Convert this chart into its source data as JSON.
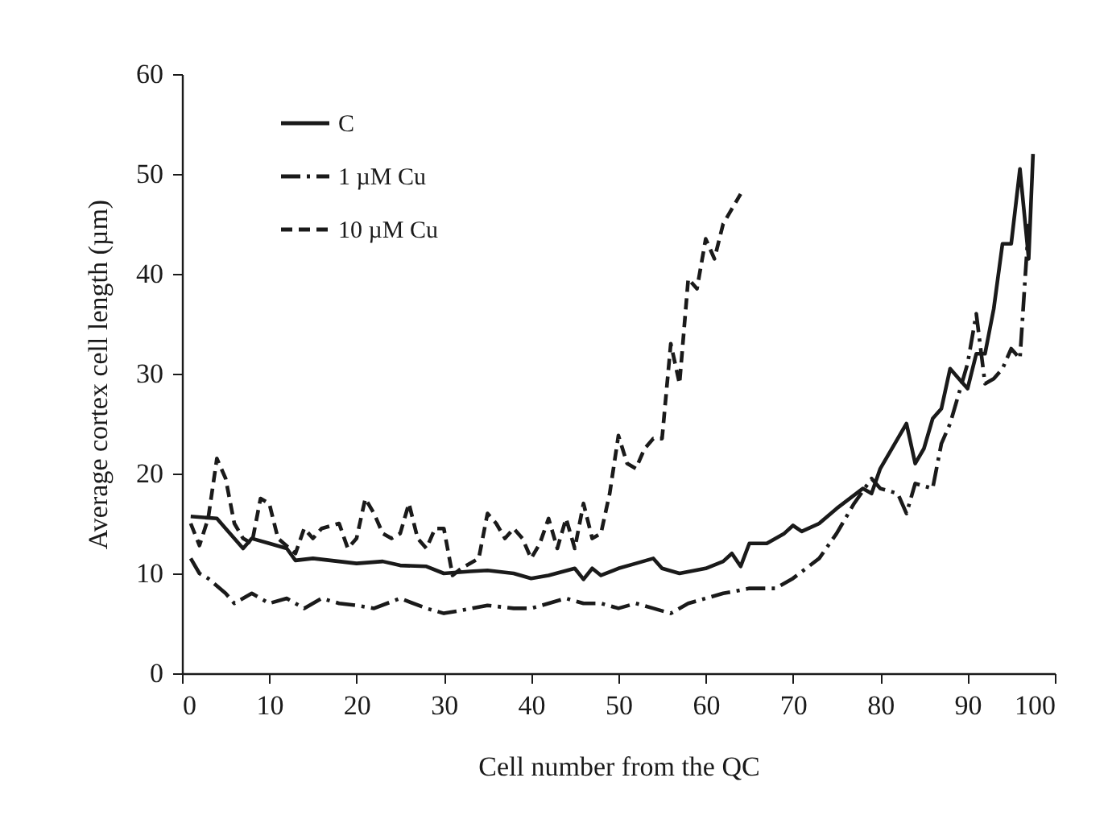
{
  "chart_data": {
    "type": "line",
    "xlabel": "Cell number from the QC",
    "ylabel": "Average cortex cell length (µm)",
    "xlim": [
      0,
      100
    ],
    "xticks": [
      0,
      10,
      20,
      30,
      40,
      50,
      60,
      70,
      80,
      90,
      100
    ],
    "ylim": [
      0,
      60
    ],
    "yticks": [
      0,
      10,
      20,
      30,
      40,
      50,
      60
    ],
    "grid": false,
    "legend": "top left",
    "marker": "none",
    "series": [
      {
        "name": "C",
        "color": "#1a1a1a",
        "line_style": "solid",
        "x": [
          1,
          4,
          5,
          7,
          8,
          10,
          12,
          13,
          15,
          18,
          20,
          23,
          25,
          28,
          30,
          33,
          35,
          38,
          40,
          42,
          45,
          46,
          47,
          48,
          50,
          52,
          54,
          55,
          57,
          60,
          62,
          63,
          64,
          65,
          67,
          69,
          70,
          71,
          73,
          75,
          78,
          79,
          80,
          82,
          83,
          84,
          85,
          86,
          87,
          88,
          89,
          90,
          91,
          92,
          93,
          94,
          95,
          96,
          97,
          97.5
        ],
        "values": [
          15.7,
          15.5,
          14.5,
          12.5,
          13.5,
          13,
          12.5,
          11.3,
          11.5,
          11.2,
          11,
          11.2,
          10.8,
          10.7,
          10,
          10.2,
          10.3,
          10,
          9.5,
          9.8,
          10.5,
          9.4,
          10.5,
          9.8,
          10.5,
          11,
          11.5,
          10.5,
          10,
          10.5,
          11.2,
          12,
          10.7,
          13,
          13,
          14,
          14.8,
          14.2,
          15,
          16.5,
          18.5,
          18,
          20.5,
          23.5,
          25,
          21,
          22.5,
          25.5,
          26.5,
          30.5,
          29.5,
          28.5,
          32,
          32,
          36.5,
          43,
          43,
          50.5,
          41.5,
          52
        ]
      },
      {
        "name": "1 µM Cu",
        "color": "#1a1a1a",
        "line_style": "dashdot",
        "x": [
          1,
          2,
          3,
          5,
          6,
          8,
          10,
          12,
          14,
          16,
          18,
          20,
          22,
          25,
          28,
          30,
          32,
          35,
          38,
          40,
          42,
          44,
          46,
          48,
          50,
          52,
          54,
          56,
          58,
          60,
          62,
          65,
          68,
          70,
          73,
          75,
          77,
          79,
          80,
          82,
          83,
          84,
          86,
          87,
          88,
          90,
          91,
          92,
          93,
          94,
          95,
          96,
          97
        ],
        "values": [
          11.5,
          10,
          9.5,
          8,
          7,
          8,
          7,
          7.5,
          6.5,
          7.5,
          7,
          6.8,
          6.5,
          7.5,
          6.5,
          6,
          6.3,
          6.8,
          6.5,
          6.5,
          7,
          7.5,
          7,
          7,
          6.5,
          7,
          6.5,
          6,
          7,
          7.5,
          8,
          8.5,
          8.5,
          9.5,
          11.5,
          14,
          17,
          19.5,
          18.5,
          18,
          16,
          19,
          18.5,
          23,
          25,
          31,
          36,
          29,
          29.5,
          30.5,
          32.5,
          31.5,
          45
        ]
      },
      {
        "name": "10 µM Cu",
        "color": "#1a1a1a",
        "line_style": "dashed",
        "x": [
          1,
          2,
          3,
          4,
          5,
          6,
          7,
          8,
          9,
          10,
          11,
          13,
          14,
          15,
          16,
          18,
          19,
          20,
          21,
          22,
          23,
          24,
          25,
          26,
          27,
          28,
          29,
          30,
          31,
          32,
          34,
          35,
          36,
          37,
          38,
          39,
          40,
          41,
          42,
          43,
          44,
          45,
          46,
          47,
          48,
          49,
          50,
          51,
          52,
          53,
          54,
          55,
          56,
          57,
          58,
          59,
          60,
          61,
          62,
          63,
          64
        ],
        "values": [
          15,
          12.8,
          15.5,
          21.5,
          19.5,
          15,
          13.5,
          13,
          17.5,
          17,
          13.5,
          12,
          14.5,
          13.5,
          14.5,
          15,
          12.5,
          13.5,
          17.5,
          16,
          14,
          13.5,
          14,
          17,
          13.5,
          12.5,
          14.5,
          14.5,
          9.8,
          10.5,
          11.5,
          16,
          15,
          13.5,
          14.5,
          13.5,
          11.5,
          13,
          15.5,
          12.5,
          15.5,
          12.5,
          17,
          13.5,
          14,
          18,
          23.8,
          21,
          20.5,
          22.5,
          23.5,
          23.5,
          33,
          29,
          39.5,
          38.5,
          43.5,
          41.5,
          45,
          46.5,
          48
        ]
      }
    ]
  }
}
